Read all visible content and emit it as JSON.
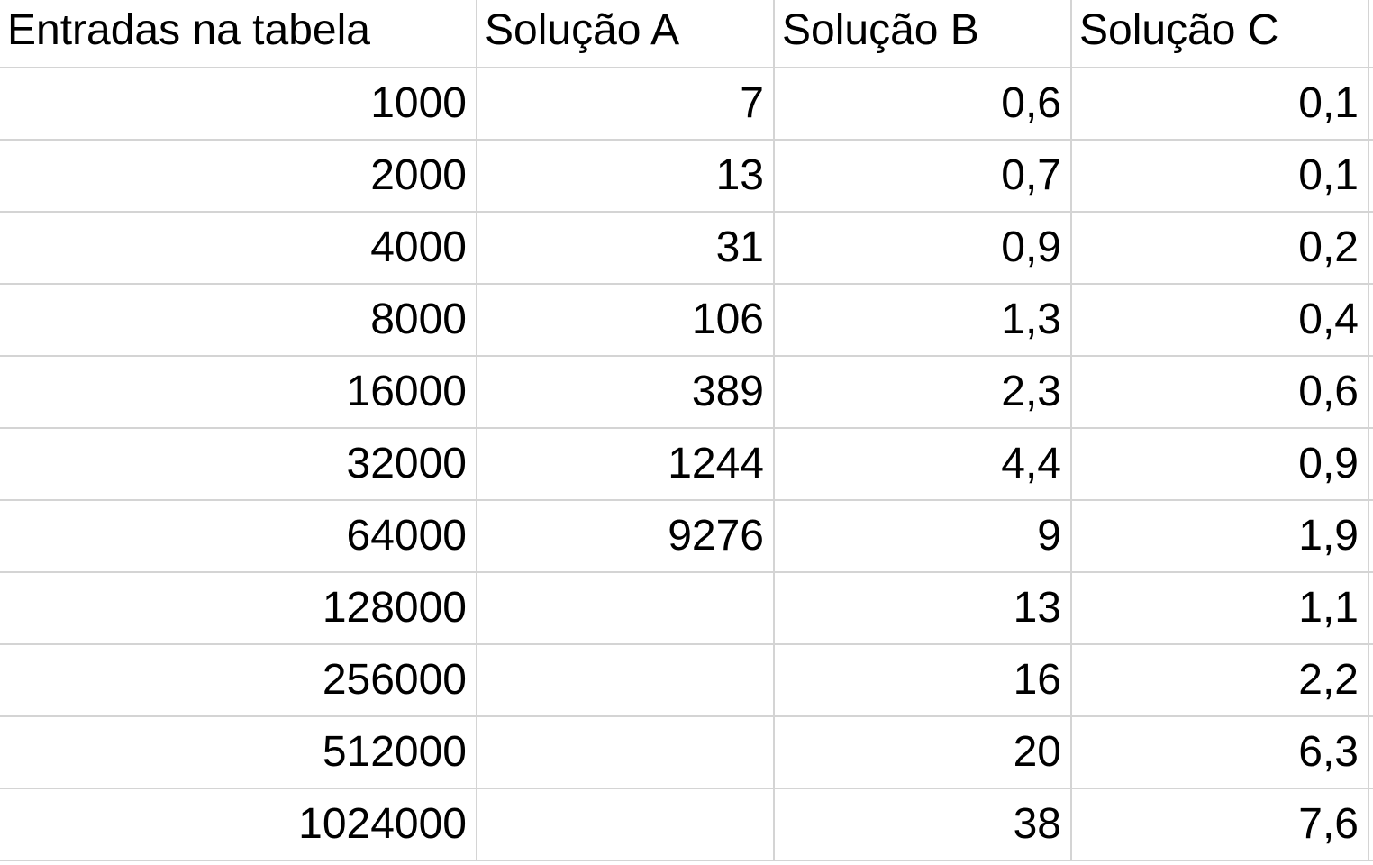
{
  "table": {
    "headers": [
      "Entradas na tabela",
      "Solução A",
      "Solução B",
      "Solução C"
    ],
    "rows": [
      [
        "1000",
        "7",
        "0,6",
        "0,1"
      ],
      [
        "2000",
        "13",
        "0,7",
        "0,1"
      ],
      [
        "4000",
        "31",
        "0,9",
        "0,2"
      ],
      [
        "8000",
        "106",
        "1,3",
        "0,4"
      ],
      [
        "16000",
        "389",
        "2,3",
        "0,6"
      ],
      [
        "32000",
        "1244",
        "4,4",
        "0,9"
      ],
      [
        "64000",
        "9276",
        "9",
        "1,9"
      ],
      [
        "128000",
        "",
        "13",
        "1,1"
      ],
      [
        "256000",
        "",
        "16",
        "2,2"
      ],
      [
        "512000",
        "",
        "20",
        "6,3"
      ],
      [
        "1024000",
        "",
        "38",
        "7,6"
      ]
    ]
  },
  "colors": {
    "gridline": "#d4d4d4",
    "text": "#000000",
    "background": "#ffffff"
  }
}
